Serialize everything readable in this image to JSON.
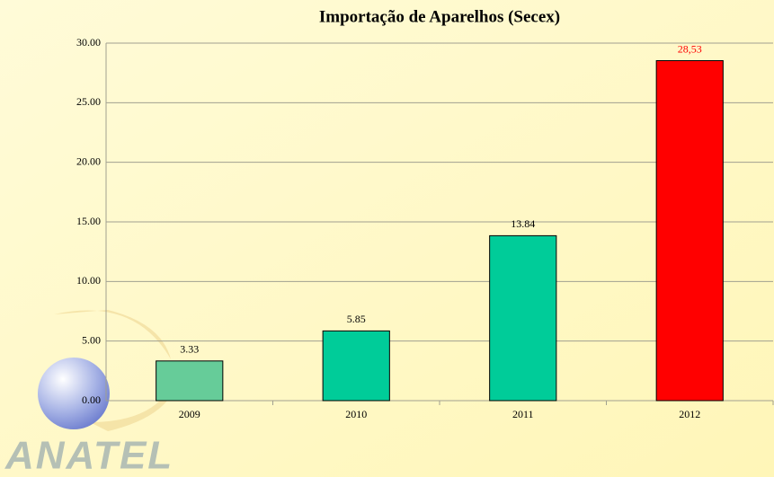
{
  "chart_data": {
    "type": "bar",
    "title": "Importação de Aparelhos (Secex)",
    "categories": [
      "2009",
      "2010",
      "2011",
      "2012"
    ],
    "values": [
      3.33,
      5.85,
      13.84,
      28.53
    ],
    "value_labels": [
      "3.33",
      "5.85",
      "13.84",
      "28,53"
    ],
    "colors": [
      "#66cc99",
      "#00cc99",
      "#00cc99",
      "#ff0000"
    ],
    "label_colors": [
      "#000000",
      "#000000",
      "#000000",
      "#ff0000"
    ],
    "ylim": [
      0,
      30
    ],
    "yticks": [
      {
        "value": 0,
        "label": "0.00"
      },
      {
        "value": 5,
        "label": "5.00"
      },
      {
        "value": 10,
        "label": "10.00"
      },
      {
        "value": 15,
        "label": "15.00"
      },
      {
        "value": 20,
        "label": "20.00"
      },
      {
        "value": 25,
        "label": "25.00"
      },
      {
        "value": 30,
        "label": "30.00"
      }
    ],
    "grid": true
  },
  "logo": "ANATEL"
}
